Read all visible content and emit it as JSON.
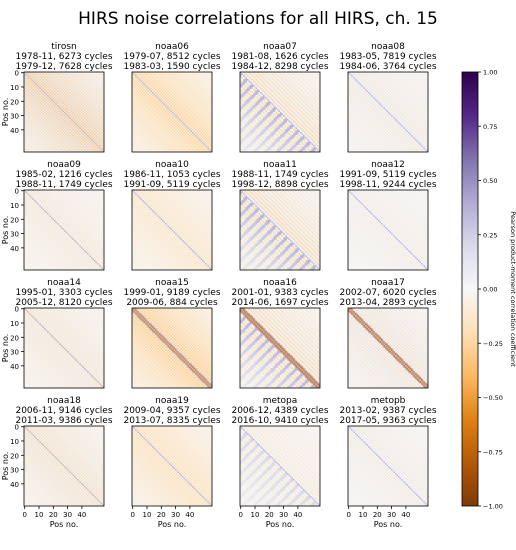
{
  "chart_data": {
    "type": "heatmap",
    "title": "HIRS noise correlations for all HIRS, ch. 15",
    "xlabel": "Pos no.",
    "ylabel": "Pos no.",
    "xticks": [
      0,
      10,
      20,
      30,
      40
    ],
    "yticks": [
      0,
      10,
      20,
      30,
      40
    ],
    "matrix_size": 56,
    "colorbar": {
      "label": "Pearson product-moment correlation coefficient",
      "range": [
        -1.0,
        1.0
      ],
      "ticks": [
        "1.00",
        "0.75",
        "0.50",
        "0.25",
        "0.00",
        "−0.25",
        "−0.50",
        "−0.75",
        "−1.00"
      ],
      "colormap": "PuOr_r",
      "colors": [
        "#7f3b08",
        "#b35806",
        "#e08214",
        "#fdb863",
        "#fee0b6",
        "#f7f7f7",
        "#d8daeb",
        "#b2abd2",
        "#8073ac",
        "#542788",
        "#2d004b"
      ]
    },
    "panels": [
      {
        "name": "tirosn",
        "line1": "1978-11, 6273 cycles",
        "line2": "1979-12, 7628 cycles"
      },
      {
        "name": "noaa06",
        "line1": "1979-07, 8512 cycles",
        "line2": "1983-03, 1590 cycles"
      },
      {
        "name": "noaa07",
        "line1": "1981-08, 1626 cycles",
        "line2": "1984-12, 8298 cycles"
      },
      {
        "name": "noaa08",
        "line1": "1983-05, 7819 cycles",
        "line2": "1984-06, 3764 cycles"
      },
      {
        "name": "noaa09",
        "line1": "1985-02, 1216 cycles",
        "line2": "1988-11, 1749 cycles"
      },
      {
        "name": "noaa10",
        "line1": "1986-11, 1053 cycles",
        "line2": "1991-09, 5119 cycles"
      },
      {
        "name": "noaa11",
        "line1": "1988-11, 1749 cycles",
        "line2": "1998-12, 8898 cycles"
      },
      {
        "name": "noaa12",
        "line1": "1991-09, 5119 cycles",
        "line2": "1998-11, 9244 cycles"
      },
      {
        "name": "noaa14",
        "line1": "1995-01, 3303 cycles",
        "line2": "2005-12, 8120 cycles"
      },
      {
        "name": "noaa15",
        "line1": "1999-01, 9189 cycles",
        "line2": "2009-06, 884 cycles"
      },
      {
        "name": "noaa16",
        "line1": "2001-01, 9383 cycles",
        "line2": "2014-06, 1697 cycles"
      },
      {
        "name": "noaa17",
        "line1": "2002-07, 6020 cycles",
        "line2": "2013-04, 2893 cycles"
      },
      {
        "name": "noaa18",
        "line1": "2006-11, 9146 cycles",
        "line2": "2011-03, 9386 cycles"
      },
      {
        "name": "noaa19",
        "line1": "2009-04, 9357 cycles",
        "line2": "2013-07, 8335 cycles"
      },
      {
        "name": "metopa",
        "line1": "2006-12, 4389 cycles",
        "line2": "2016-10, 9410 cycles"
      },
      {
        "name": "metopb",
        "line1": "2013-02, 9387 cycles",
        "line2": "2017-05, 9363 cycles"
      }
    ]
  }
}
